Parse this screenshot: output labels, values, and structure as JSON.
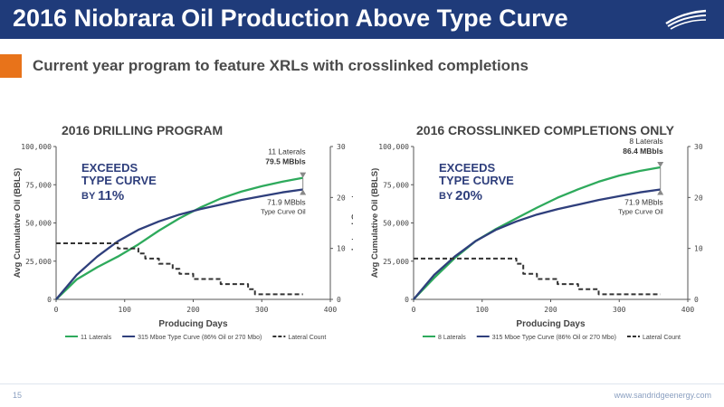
{
  "header": {
    "title": "2016 Niobrara Oil Production Above Type Curve",
    "subtitle": "Current year program to feature XRLs with crosslinked completions"
  },
  "footer": {
    "page": "15",
    "url": "www.sandridgeenergy.com"
  },
  "colors": {
    "navy": "#1f3b7a",
    "orange": "#e8731a",
    "green": "#2eaa5c",
    "curve": "#2f3f7c",
    "lateral": "#333333"
  },
  "chart_data": [
    {
      "type": "line",
      "title": "2016 DRILLING PROGRAM",
      "xlabel": "Producing Days",
      "ylabel": "Avg Cumulative Oil (BBLS)",
      "y2label": "Lateral Count",
      "xlim": [
        0,
        400
      ],
      "ylim": [
        0,
        100000
      ],
      "y2lim": [
        0,
        30
      ],
      "xticks": [
        "0",
        "100",
        "200",
        "300",
        "400"
      ],
      "yticks": [
        "0",
        "25,000",
        "50,000",
        "75,000",
        "100,000"
      ],
      "y2ticks": [
        "0",
        "10",
        "20",
        "30"
      ],
      "callout": {
        "lines": [
          "EXCEEDS",
          "TYPE CURVE",
          "BY",
          "11%"
        ]
      },
      "annotation_top": [
        "11 Laterals",
        "79.5 MBbls"
      ],
      "annotation_bottom": [
        "71.9 MBbls",
        "Type Curve Oil"
      ],
      "series": [
        {
          "name": "11 Laterals",
          "style": "green",
          "x": [
            0,
            30,
            60,
            90,
            120,
            150,
            180,
            210,
            240,
            270,
            300,
            330,
            360
          ],
          "y": [
            0,
            13000,
            21000,
            28000,
            36000,
            45000,
            53000,
            60000,
            66000,
            70500,
            74000,
            77000,
            79500
          ]
        },
        {
          "name": "315 Mboe Type Curve (86% Oil or 270 Mbo)",
          "style": "navy",
          "x": [
            0,
            30,
            60,
            90,
            120,
            150,
            180,
            210,
            240,
            270,
            300,
            330,
            360
          ],
          "y": [
            0,
            16000,
            28000,
            38000,
            45500,
            51000,
            55500,
            59000,
            62000,
            65000,
            67500,
            70000,
            71900
          ]
        },
        {
          "name": "Lateral Count",
          "style": "dashed",
          "axis": "y2",
          "x": [
            0,
            90,
            90,
            120,
            120,
            130,
            130,
            150,
            150,
            170,
            170,
            180,
            180,
            200,
            200,
            240,
            240,
            280,
            280,
            290,
            290,
            300,
            300,
            360
          ],
          "y": [
            11,
            11,
            10,
            10,
            9,
            9,
            8,
            8,
            7,
            7,
            6,
            6,
            5,
            5,
            4,
            4,
            3,
            3,
            2,
            2,
            1,
            1,
            1,
            1
          ]
        }
      ]
    },
    {
      "type": "line",
      "title": "2016 CROSSLINKED COMPLETIONS ONLY",
      "xlabel": "Producing Days",
      "ylabel": "Avg Cumulative Oil (BBLS)",
      "y2label": "",
      "xlim": [
        0,
        400
      ],
      "ylim": [
        0,
        100000
      ],
      "y2lim": [
        0,
        30
      ],
      "xticks": [
        "0",
        "100",
        "200",
        "300",
        "400"
      ],
      "yticks": [
        "0",
        "25,000",
        "50,000",
        "75,000",
        "100,000"
      ],
      "y2ticks": [
        "0",
        "10",
        "20",
        "30"
      ],
      "callout": {
        "lines": [
          "EXCEEDS",
          "TYPE CURVE",
          "BY",
          "20%"
        ]
      },
      "annotation_top": [
        "8 Laterals",
        "86.4 MBbls"
      ],
      "annotation_bottom": [
        "71.9 MBbls",
        "Type Curve Oil"
      ],
      "series": [
        {
          "name": "8 Laterals",
          "style": "green",
          "x": [
            0,
            30,
            60,
            90,
            120,
            150,
            180,
            210,
            240,
            270,
            300,
            330,
            360
          ],
          "y": [
            0,
            14000,
            27000,
            38000,
            46000,
            53000,
            60000,
            66500,
            72000,
            77000,
            81000,
            84000,
            86400
          ]
        },
        {
          "name": "315 Mboe Type Curve (86% Oil or 270 Mbo)",
          "style": "navy",
          "x": [
            0,
            30,
            60,
            90,
            120,
            150,
            180,
            210,
            240,
            270,
            300,
            330,
            360
          ],
          "y": [
            0,
            16000,
            28000,
            38000,
            45500,
            51000,
            55500,
            59000,
            62000,
            65000,
            67500,
            70000,
            71900
          ]
        },
        {
          "name": "Lateral Count",
          "style": "dashed",
          "axis": "y2",
          "x": [
            0,
            150,
            150,
            160,
            160,
            180,
            180,
            210,
            210,
            240,
            240,
            270,
            270,
            300,
            300,
            360
          ],
          "y": [
            8,
            8,
            7,
            7,
            5,
            5,
            4,
            4,
            3,
            3,
            2,
            2,
            1,
            1,
            1,
            1
          ]
        }
      ]
    }
  ]
}
